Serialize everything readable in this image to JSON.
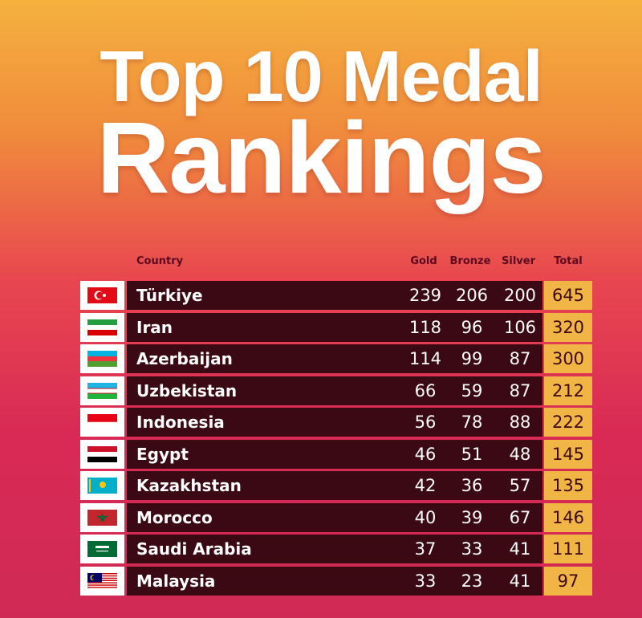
{
  "header": {
    "title_line1": "Top 10 Medal",
    "title_line2": "Rankings"
  },
  "table": {
    "columns": [
      "Country",
      "Gold",
      "Bronze",
      "Silver",
      "Total"
    ],
    "rows": [
      [
        "Türkiye",
        239,
        206,
        200,
        645
      ],
      [
        "Iran",
        118,
        96,
        106,
        320
      ],
      [
        "Azerbaijan",
        114,
        99,
        87,
        300
      ],
      [
        "Uzbekistan",
        66,
        59,
        87,
        212
      ],
      [
        "Indonesia",
        56,
        78,
        88,
        222
      ],
      [
        "Egypt",
        46,
        51,
        48,
        145
      ],
      [
        "Kazakhstan",
        42,
        36,
        57,
        135
      ],
      [
        "Morocco",
        40,
        39,
        67,
        146
      ],
      [
        "Saudi Arabia",
        37,
        33,
        41,
        111
      ],
      [
        "Malaysia",
        33,
        23,
        41,
        97
      ]
    ]
  }
}
